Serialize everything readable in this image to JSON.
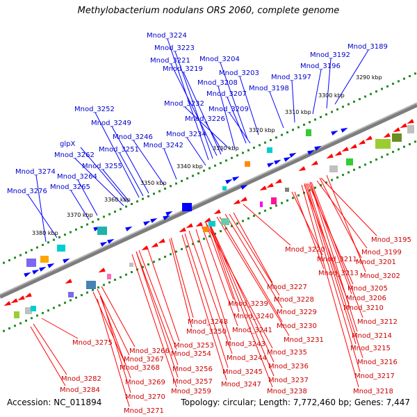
{
  "header": {
    "title": "Methylobacterium nodulans ORS 2060, complete genome"
  },
  "footer": {
    "accession": "Accession: NC_011894",
    "info": "Topology: circular; Length: 7,772,460 bp; Genes: 7,447"
  },
  "colors": {
    "forward_gene": "#0000ff",
    "reverse_gene": "#ff0000",
    "forward_label": "#0000cc",
    "reverse_label": "#cc0000",
    "backbone": "#808080",
    "dots": "#228b22"
  },
  "kbp_ticks": [
    "3290 kbp",
    "3300 kbp",
    "3310 kbp",
    "3320 kbp",
    "3330 kbp",
    "3340 kbp",
    "3350 kbp",
    "3360 kbp",
    "3370 kbp",
    "3380 kbp"
  ],
  "top_labels": [
    "Mnod_3224",
    "Mnod_3223",
    "Mnod_3221",
    "Mnod_3219",
    "Mnod_3204",
    "Mnod_3189",
    "Mnod_3192",
    "Mnod_3196",
    "Mnod_3197",
    "Mnod_3203",
    "Mnod_3208",
    "Mnod_3198",
    "Mnod_3207",
    "Mnod_3232",
    "Mnod_3209",
    "Mnod_3252",
    "Mnod_3226",
    "Mnod_3249",
    "Mnod_3246",
    "Mnod_3234",
    "glpX",
    "Mnod_3251",
    "Mnod_3242",
    "Mnod_3262",
    "Mnod_3255",
    "Mnod_3274",
    "Mnod_3264",
    "Mnod_3265",
    "Mnod_3276"
  ],
  "bottom_labels": [
    "Mnod_3195",
    "Mnod_3199",
    "Mnod_3220",
    "Mnod_3211",
    "Mnod_3201",
    "Mnod_3213",
    "Mnod_3202",
    "Mnod_3205",
    "Mnod_3206",
    "Mnod_3227",
    "Mnod_3210",
    "Mnod_3228",
    "Mnod_3239",
    "Mnod_3229",
    "Mnod_3240",
    "Mnod_3212",
    "Mnod_3230",
    "Mnod_3248",
    "Mnod_3241",
    "Mnod_3214",
    "Mnod_3231",
    "Mnod_3250",
    "Mnod_3243",
    "Mnod_3215",
    "Mnod_3275",
    "Mnod_3253",
    "Mnod_3235",
    "Mnod_3266",
    "Mnod_3216",
    "Mnod_3254",
    "Mnod_3244",
    "Mnod_3267",
    "Mnod_3236",
    "Mnod_3268",
    "Mnod_3256",
    "Mnod_3245",
    "Mnod_3217",
    "Mnod_3282",
    "Mnod_3237",
    "Mnod_3269",
    "Mnod_3257",
    "Mnod_3247",
    "Mnod_3238",
    "Mnod_3284",
    "Mnod_3259",
    "Mnod_3218",
    "Mnod_3270",
    "Mnod_3271"
  ]
}
